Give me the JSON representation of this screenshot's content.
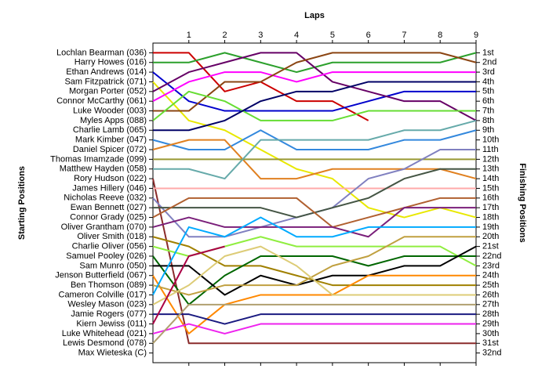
{
  "chart_data": {
    "type": "line",
    "title": "Laps",
    "y_label": "Starting Positions",
    "y2_label": "Finishing Positions",
    "x": [
      0,
      1,
      2,
      3,
      4,
      5,
      6,
      7,
      8,
      9
    ],
    "xlim": [
      0,
      9
    ],
    "xticks": [
      1,
      2,
      3,
      4,
      5,
      6,
      7,
      8,
      9
    ],
    "ylim": [
      33,
      0
    ],
    "y2ticks": [
      {
        "value": 1,
        "label": "1st"
      },
      {
        "value": 2,
        "label": "2nd"
      },
      {
        "value": 3,
        "label": "3rd"
      },
      {
        "value": 4,
        "label": "4th"
      },
      {
        "value": 5,
        "label": "5th"
      },
      {
        "value": 6,
        "label": "6th"
      },
      {
        "value": 7,
        "label": "7th"
      },
      {
        "value": 8,
        "label": "8th"
      },
      {
        "value": 9,
        "label": "9th"
      },
      {
        "value": 10,
        "label": "10th"
      },
      {
        "value": 11,
        "label": "11th"
      },
      {
        "value": 12,
        "label": "12th"
      },
      {
        "value": 13,
        "label": "13th"
      },
      {
        "value": 14,
        "label": "14th"
      },
      {
        "value": 15,
        "label": "15th"
      },
      {
        "value": 16,
        "label": "16th"
      },
      {
        "value": 17,
        "label": "17th"
      },
      {
        "value": 18,
        "label": "18th"
      },
      {
        "value": 19,
        "label": "19th"
      },
      {
        "value": 20,
        "label": "20th"
      },
      {
        "value": 21,
        "label": "21st"
      },
      {
        "value": 22,
        "label": "22nd"
      },
      {
        "value": 23,
        "label": "23rd"
      },
      {
        "value": 24,
        "label": "24th"
      },
      {
        "value": 25,
        "label": "25th"
      },
      {
        "value": 26,
        "label": "26th"
      },
      {
        "value": 27,
        "label": "27th"
      },
      {
        "value": 28,
        "label": "28th"
      },
      {
        "value": 29,
        "label": "29th"
      },
      {
        "value": 30,
        "label": "30th"
      },
      {
        "value": 31,
        "label": "31st"
      },
      {
        "value": 32,
        "label": "32nd"
      }
    ],
    "series": [
      {
        "name": "Lochlan Bearman (036)",
        "color": "#cc0000",
        "values": [
          1,
          1,
          5,
          4,
          6,
          6,
          8,
          null,
          null,
          null
        ]
      },
      {
        "name": "Harry Howes (016)",
        "color": "#2ca02c",
        "values": [
          2,
          2,
          1,
          2,
          3,
          2,
          2,
          2,
          2,
          1
        ]
      },
      {
        "name": "Ethan Andrews (014)",
        "color": "#0000cc",
        "values": [
          3,
          6,
          7,
          7,
          7,
          7,
          6,
          5,
          5,
          5
        ]
      },
      {
        "name": "Sam Fitzpatrick (071)",
        "color": "#e8e800",
        "values": [
          4,
          8,
          9,
          11,
          13,
          14,
          17,
          18,
          17,
          18
        ]
      },
      {
        "name": "Morgan Porter (052)",
        "color": "#660066",
        "values": [
          5,
          3,
          2,
          1,
          1,
          4,
          5,
          6,
          6,
          8
        ]
      },
      {
        "name": "Connor McCarthy (061)",
        "color": "#ff00ff",
        "values": [
          6,
          4,
          3,
          3,
          4,
          3,
          3,
          3,
          3,
          3
        ]
      },
      {
        "name": "Luke Wooder (003)",
        "color": "#8b4513",
        "values": [
          7,
          7,
          4,
          4,
          2,
          1,
          1,
          1,
          1,
          2
        ]
      },
      {
        "name": "Myles Apps (088)",
        "color": "#66dd33",
        "values": [
          8,
          5,
          6,
          8,
          8,
          8,
          7,
          7,
          7,
          7
        ]
      },
      {
        "name": "Charlie Lamb (065)",
        "color": "#000066",
        "values": [
          9,
          9,
          8,
          6,
          5,
          5,
          4,
          4,
          4,
          4
        ]
      },
      {
        "name": "Mark Kimber (047)",
        "color": "#3388dd",
        "values": [
          10,
          11,
          11,
          9,
          11,
          11,
          11,
          10,
          10,
          9
        ]
      },
      {
        "name": "Daniel Spicer (072)",
        "color": "#e08020",
        "values": [
          11,
          10,
          10,
          14,
          14,
          13,
          13,
          13,
          13,
          14
        ]
      },
      {
        "name": "Thomas Imamzade (099)",
        "color": "#999933",
        "values": [
          12,
          12,
          12,
          12,
          12,
          12,
          12,
          12,
          12,
          12
        ]
      },
      {
        "name": "Matthew Hayden (058)",
        "color": "#66aaaa",
        "values": [
          13,
          13,
          14,
          10,
          10,
          10,
          10,
          9,
          9,
          8
        ]
      },
      {
        "name": "Rory Hudson (022)",
        "color": "#8a2b2b",
        "values": [
          14,
          31,
          31,
          31,
          31,
          31,
          31,
          31,
          31,
          31
        ]
      },
      {
        "name": "James Hillery (046)",
        "color": "#ffaaaa",
        "values": [
          15,
          15,
          15,
          15,
          15,
          15,
          15,
          15,
          15,
          15
        ]
      },
      {
        "name": "Nicholas Reeve (032)",
        "color": "#8080c0",
        "values": [
          16,
          20,
          20,
          19,
          18,
          17,
          14,
          13,
          11,
          11
        ]
      },
      {
        "name": "Ewan Bennett (027)",
        "color": "#445544",
        "values": [
          17,
          17,
          17,
          17,
          18,
          17,
          16,
          14,
          13,
          13
        ]
      },
      {
        "name": "Connor Grady (025)",
        "color": "#b06030",
        "values": [
          18,
          16,
          16,
          16,
          16,
          19,
          18,
          17,
          16,
          16
        ]
      },
      {
        "name": "Oliver Grantham (070)",
        "color": "#7a1f7a",
        "values": [
          19,
          18,
          19,
          19,
          19,
          19,
          20,
          17,
          17,
          17
        ]
      },
      {
        "name": "Oliver Smith (018)",
        "color": "#a08000",
        "values": [
          20,
          21,
          23,
          23,
          24,
          25,
          25,
          25,
          25,
          25
        ]
      },
      {
        "name": "Charlie Oliver (056)",
        "color": "#90ee40",
        "values": [
          21,
          22,
          21,
          20,
          21,
          21,
          21,
          21,
          21,
          23
        ]
      },
      {
        "name": "Samuel Pooley (026)",
        "color": "#006600",
        "values": [
          22,
          27,
          24,
          22,
          22,
          22,
          23,
          22,
          22,
          22
        ]
      },
      {
        "name": "Sam Munro (050)",
        "color": "#000000",
        "values": [
          23,
          23,
          26,
          24,
          25,
          24,
          24,
          23,
          23,
          21
        ]
      },
      {
        "name": "Jenson Butterfield (067)",
        "color": "#ff8800",
        "values": [
          24,
          30,
          27,
          26,
          26,
          26,
          24,
          24,
          24,
          24
        ]
      },
      {
        "name": "Ben Thomson (089)",
        "color": "#c0a040",
        "values": [
          25,
          26,
          25,
          25,
          25,
          23,
          22,
          20,
          20,
          20
        ]
      },
      {
        "name": "Cameron Colville (017)",
        "color": "#00aaff",
        "values": [
          26,
          19,
          20,
          18,
          20,
          20,
          19,
          19,
          19,
          19
        ]
      },
      {
        "name": "Wesley Mason (023)",
        "color": "#ddcc77",
        "values": [
          27,
          25,
          22,
          21,
          23,
          26,
          26,
          26,
          26,
          26
        ]
      },
      {
        "name": "Jamie Rogers (077)",
        "color": "#1a1a80",
        "values": [
          28,
          28,
          29,
          28,
          28,
          28,
          28,
          28,
          28,
          28
        ]
      },
      {
        "name": "Kiern Jewiss (011)",
        "color": "#aa0044",
        "values": [
          29,
          22,
          21,
          null,
          null,
          null,
          null,
          null,
          null,
          null
        ]
      },
      {
        "name": "Luke Whitehead (021)",
        "color": "#ee22ee",
        "values": [
          30,
          29,
          30,
          29,
          29,
          29,
          29,
          29,
          29,
          29
        ]
      },
      {
        "name": "Lewis Desmond (078)",
        "color": "#b0a070",
        "values": [
          31,
          27,
          27,
          27,
          27,
          27,
          27,
          27,
          27,
          27
        ]
      },
      {
        "name": "Max Wieteska (C)",
        "color": "#888888",
        "values": [
          32,
          null,
          null,
          null,
          null,
          null,
          null,
          null,
          null,
          null
        ]
      }
    ]
  }
}
